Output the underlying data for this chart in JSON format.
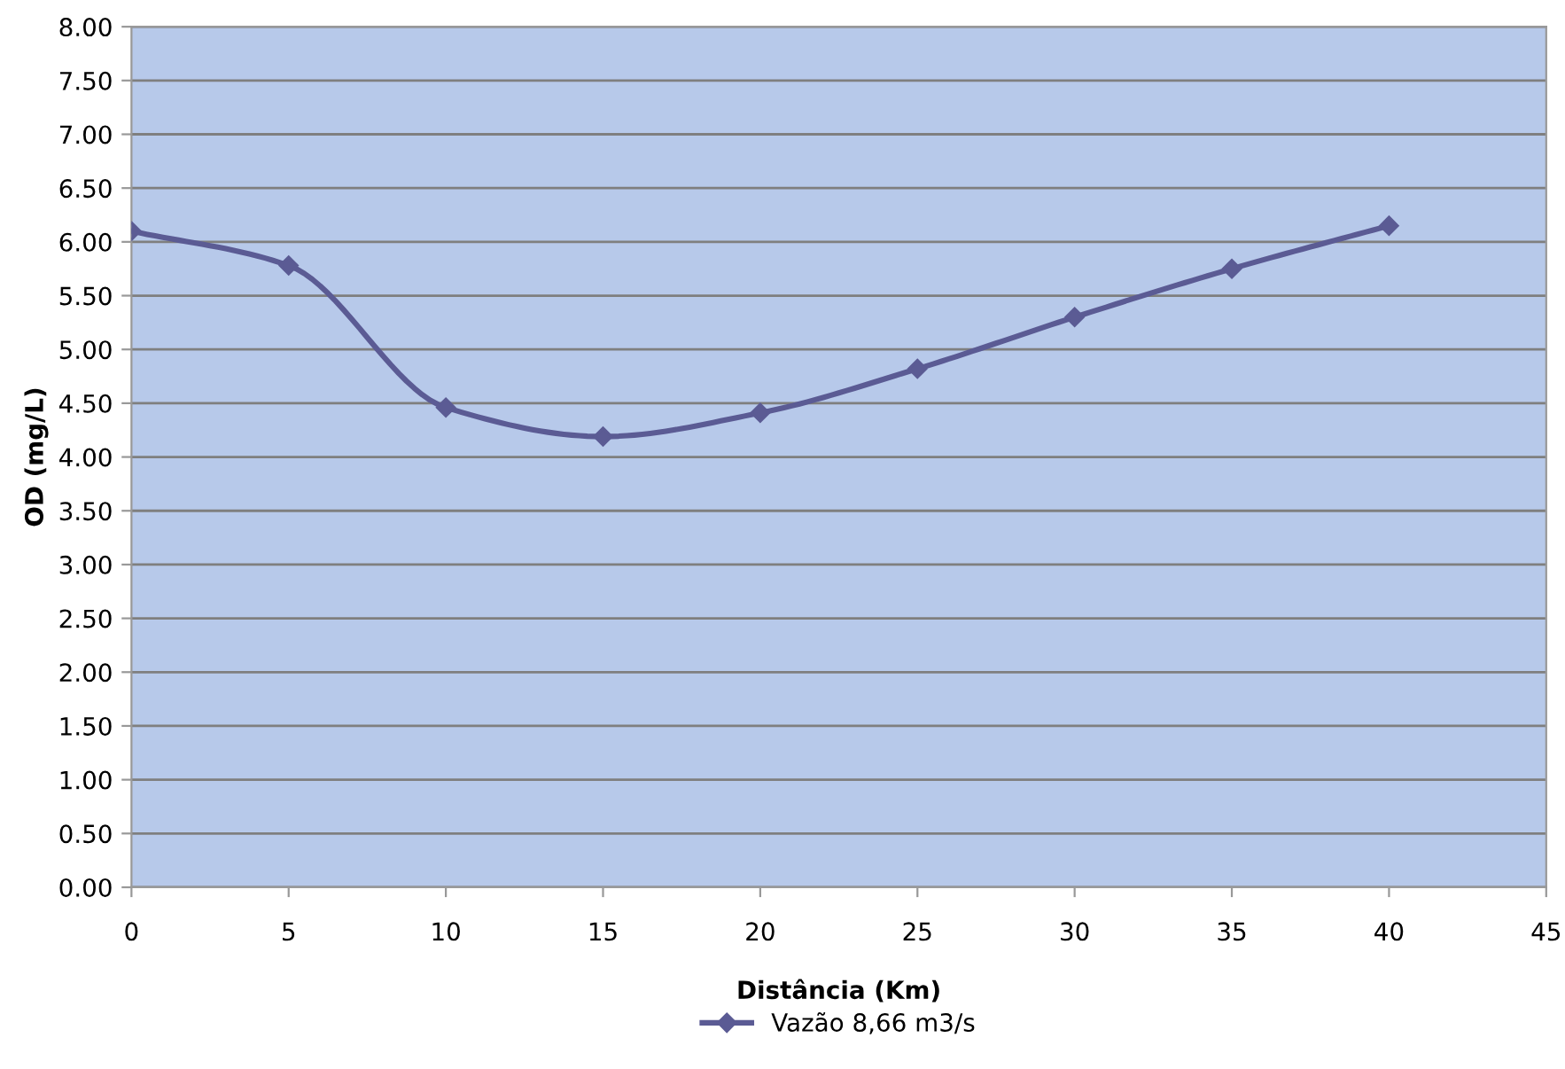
{
  "chart_data": {
    "type": "line",
    "xlabel": "Distância (Km)",
    "ylabel": "OD (mg/L)",
    "x": [
      0,
      5,
      10,
      15,
      20,
      25,
      30,
      35,
      40
    ],
    "series": [
      {
        "name": "Vazão 8,66 m3/s",
        "color": "#5b5b94",
        "values": [
          6.1,
          5.78,
          4.46,
          4.19,
          4.41,
          4.82,
          5.3,
          5.75,
          6.15
        ]
      }
    ],
    "xlim": [
      0,
      45
    ],
    "xticks": [
      0,
      5,
      10,
      15,
      20,
      25,
      30,
      35,
      40,
      45
    ],
    "ylim": [
      0,
      8
    ],
    "yticks": [
      {
        "value": 0,
        "label": "0.00"
      },
      {
        "value": 0.5,
        "label": "0.50"
      },
      {
        "value": 1,
        "label": "1.00"
      },
      {
        "value": 1.5,
        "label": "1.50"
      },
      {
        "value": 2,
        "label": "2.00"
      },
      {
        "value": 2.5,
        "label": "2.50"
      },
      {
        "value": 3,
        "label": "3.00"
      },
      {
        "value": 3.5,
        "label": "3.50"
      },
      {
        "value": 4,
        "label": "4.00"
      },
      {
        "value": 4.5,
        "label": "4.50"
      },
      {
        "value": 5,
        "label": "5.00"
      },
      {
        "value": 5.5,
        "label": "5.50"
      },
      {
        "value": 6,
        "label": "6.00"
      },
      {
        "value": 6.5,
        "label": "6.50"
      },
      {
        "value": 7,
        "label": "7.00"
      },
      {
        "value": 7.5,
        "label": "7.50"
      },
      {
        "value": 8,
        "label": "8.00"
      }
    ],
    "grid": "y",
    "legend": "bottom",
    "marker": "diamond",
    "line_style": "solid"
  }
}
